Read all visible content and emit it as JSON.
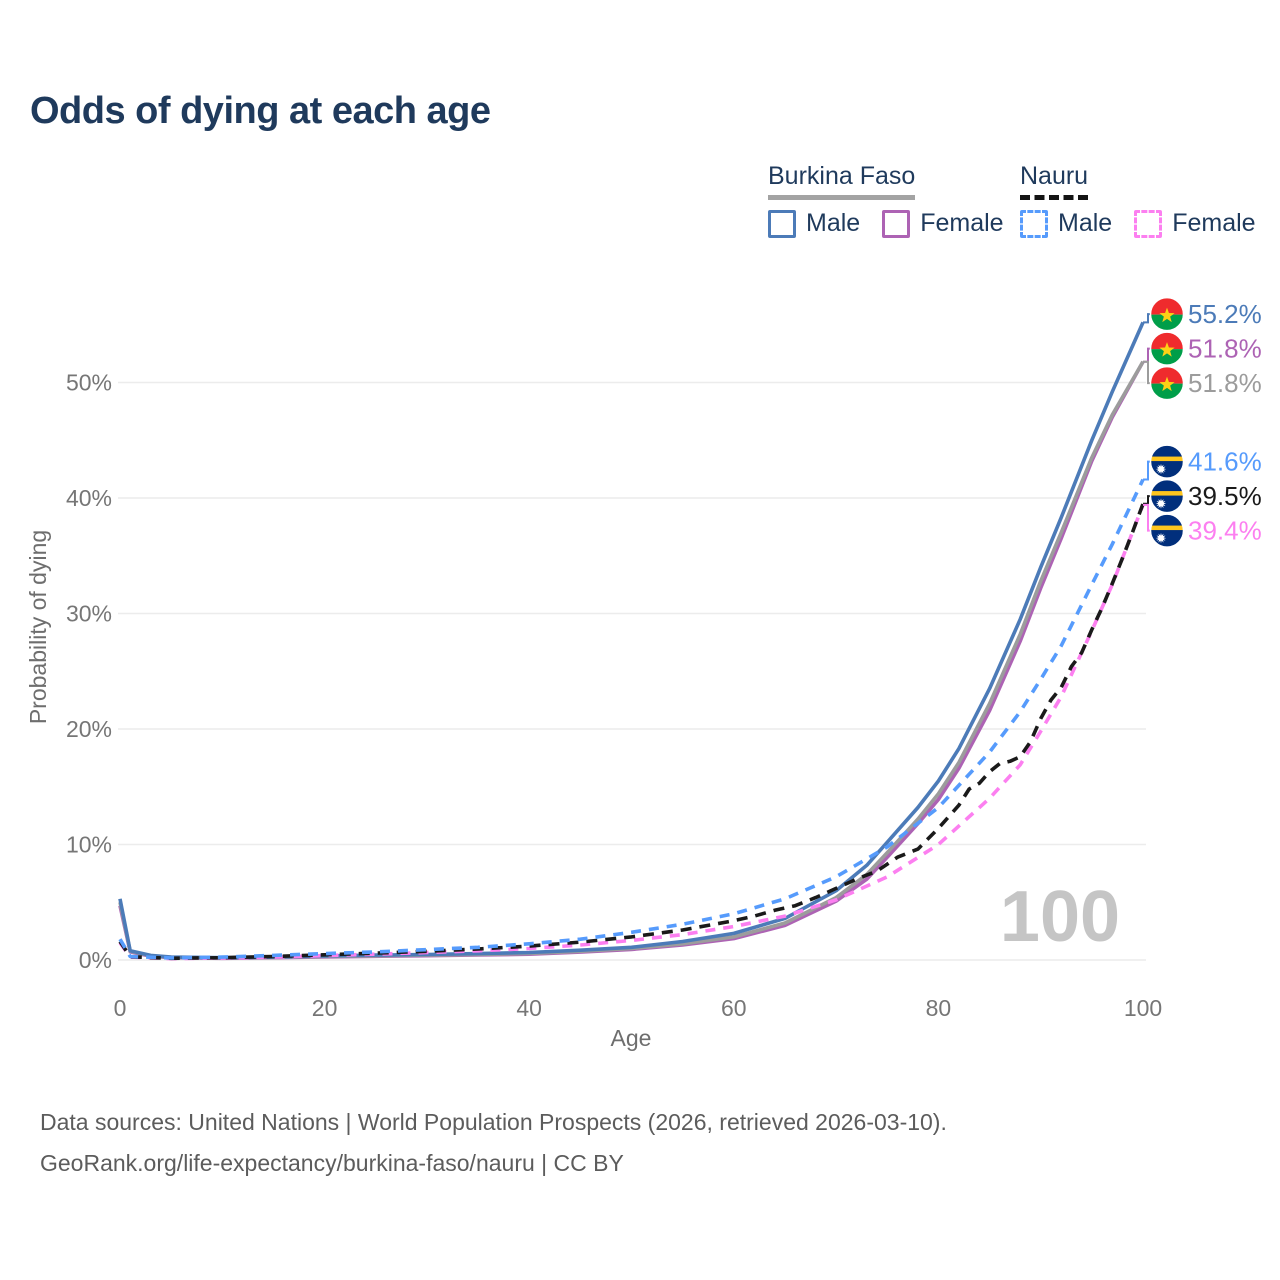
{
  "title": "Odds of dying at each age",
  "watermark_age": "100",
  "legend": {
    "groups": [
      {
        "country": "Burkina Faso",
        "line_style": "solid",
        "items": [
          {
            "label": "Male",
            "color": "#4c7bb8"
          },
          {
            "label": "Female",
            "color": "#ad63b4"
          }
        ]
      },
      {
        "country": "Nauru",
        "line_style": "dashed",
        "items": [
          {
            "label": "Male",
            "color": "#569bfc"
          },
          {
            "label": "Female",
            "color": "#fc7ff0"
          }
        ]
      }
    ]
  },
  "footer": {
    "line1": "Data sources: United Nations | World Population Prospects (2026, retrieved 2026-03-10).",
    "line2": "GeoRank.org/life-expectancy/burkina-faso/nauru | CC BY"
  },
  "flags": {
    "burkina-faso": {
      "red": "#EF2B2D",
      "green": "#009E49",
      "gold": "#FCD116"
    },
    "nauru": {
      "blue": "#012f7c",
      "gold": "#ffc61e",
      "white": "#ffffff"
    }
  },
  "chart_data": {
    "type": "line",
    "title": "Odds of dying at each age",
    "xlabel": "Age",
    "ylabel": "Probability of dying",
    "xlim": [
      0,
      100
    ],
    "ylim_percent": [
      0,
      58
    ],
    "x_ticks": [
      0,
      20,
      40,
      60,
      80,
      100
    ],
    "y_tick_values": [
      0,
      10,
      20,
      30,
      40,
      50
    ],
    "y_tick_labels": [
      "0%",
      "10%",
      "20%",
      "30%",
      "40%",
      "50%"
    ],
    "grid": true,
    "legend_position": "top-right",
    "age_watermark": "100",
    "series": [
      {
        "name": "Burkina Faso Female",
        "country": "burkina-faso",
        "color": "#ad63b4",
        "dash": null,
        "end_label": "51.8%",
        "end_value": 51.8,
        "values": [
          [
            0,
            4.7
          ],
          [
            1,
            0.7
          ],
          [
            3,
            0.33
          ],
          [
            5,
            0.2
          ],
          [
            10,
            0.15
          ],
          [
            15,
            0.2
          ],
          [
            20,
            0.27
          ],
          [
            25,
            0.32
          ],
          [
            30,
            0.37
          ],
          [
            35,
            0.43
          ],
          [
            40,
            0.5
          ],
          [
            45,
            0.68
          ],
          [
            50,
            0.92
          ],
          [
            55,
            1.3
          ],
          [
            60,
            1.85
          ],
          [
            65,
            3.0
          ],
          [
            70,
            5.1
          ],
          [
            73,
            7.0
          ],
          [
            75,
            8.9
          ],
          [
            78,
            11.8
          ],
          [
            80,
            13.9
          ],
          [
            82,
            16.6
          ],
          [
            85,
            21.6
          ],
          [
            88,
            27.6
          ],
          [
            90,
            32.2
          ],
          [
            92,
            36.5
          ],
          [
            95,
            43.2
          ],
          [
            97,
            47.0
          ],
          [
            100,
            51.8
          ]
        ]
      },
      {
        "name": "Burkina Faso Both sexes",
        "country": "burkina-faso",
        "color": "#9c9c9c",
        "dash": null,
        "end_label": "51.8%",
        "end_value": 51.8,
        "values": [
          [
            0,
            5.0
          ],
          [
            1,
            0.75
          ],
          [
            3,
            0.36
          ],
          [
            5,
            0.22
          ],
          [
            10,
            0.17
          ],
          [
            15,
            0.22
          ],
          [
            20,
            0.3
          ],
          [
            25,
            0.36
          ],
          [
            30,
            0.42
          ],
          [
            35,
            0.48
          ],
          [
            40,
            0.57
          ],
          [
            45,
            0.75
          ],
          [
            50,
            1.0
          ],
          [
            55,
            1.4
          ],
          [
            60,
            2.0
          ],
          [
            65,
            3.2
          ],
          [
            70,
            5.4
          ],
          [
            73,
            7.4
          ],
          [
            75,
            9.3
          ],
          [
            78,
            12.2
          ],
          [
            80,
            14.4
          ],
          [
            82,
            17.1
          ],
          [
            85,
            22.2
          ],
          [
            88,
            28.2
          ],
          [
            90,
            32.8
          ],
          [
            92,
            37.0
          ],
          [
            95,
            43.5
          ],
          [
            97,
            47.2
          ],
          [
            100,
            51.8
          ]
        ]
      },
      {
        "name": "Burkina Faso Male",
        "country": "burkina-faso",
        "color": "#4c7bb8",
        "dash": null,
        "end_label": "55.2%",
        "end_value": 55.2,
        "values": [
          [
            0,
            5.3
          ],
          [
            1,
            0.8
          ],
          [
            3,
            0.4
          ],
          [
            5,
            0.25
          ],
          [
            10,
            0.2
          ],
          [
            15,
            0.25
          ],
          [
            20,
            0.35
          ],
          [
            25,
            0.42
          ],
          [
            30,
            0.48
          ],
          [
            35,
            0.55
          ],
          [
            40,
            0.65
          ],
          [
            45,
            0.85
          ],
          [
            50,
            1.1
          ],
          [
            55,
            1.6
          ],
          [
            60,
            2.3
          ],
          [
            65,
            3.6
          ],
          [
            70,
            6.0
          ],
          [
            73,
            8.2
          ],
          [
            75,
            10.2
          ],
          [
            78,
            13.2
          ],
          [
            80,
            15.5
          ],
          [
            82,
            18.3
          ],
          [
            85,
            23.5
          ],
          [
            88,
            29.5
          ],
          [
            90,
            34.0
          ],
          [
            92,
            38.3
          ],
          [
            95,
            45.0
          ],
          [
            97,
            49.2
          ],
          [
            100,
            55.2
          ]
        ]
      },
      {
        "name": "Nauru Female",
        "country": "nauru",
        "color": "#fc7ff0",
        "dash": "10 8",
        "end_label": "39.4%",
        "end_value": 39.4,
        "values": [
          [
            0,
            1.5
          ],
          [
            1,
            0.25
          ],
          [
            5,
            0.12
          ],
          [
            10,
            0.17
          ],
          [
            15,
            0.25
          ],
          [
            20,
            0.38
          ],
          [
            25,
            0.5
          ],
          [
            30,
            0.65
          ],
          [
            35,
            0.8
          ],
          [
            40,
            1.0
          ],
          [
            45,
            1.3
          ],
          [
            50,
            1.7
          ],
          [
            55,
            2.2
          ],
          [
            60,
            2.9
          ],
          [
            65,
            3.8
          ],
          [
            70,
            5.2
          ],
          [
            75,
            7.2
          ],
          [
            80,
            10.0
          ],
          [
            85,
            14.0
          ],
          [
            88,
            16.9
          ],
          [
            90,
            19.8
          ],
          [
            92,
            22.8
          ],
          [
            95,
            28.5
          ],
          [
            97,
            32.5
          ],
          [
            100,
            39.4
          ]
        ]
      },
      {
        "name": "Nauru Both sexes",
        "country": "nauru",
        "color": "#1a1a1a",
        "dash": "11 8",
        "end_label": "39.5%",
        "end_value": 39.5,
        "values": [
          [
            0,
            1.6
          ],
          [
            1,
            0.28
          ],
          [
            5,
            0.15
          ],
          [
            10,
            0.2
          ],
          [
            15,
            0.3
          ],
          [
            20,
            0.45
          ],
          [
            25,
            0.6
          ],
          [
            30,
            0.75
          ],
          [
            35,
            0.95
          ],
          [
            40,
            1.2
          ],
          [
            45,
            1.55
          ],
          [
            50,
            2.0
          ],
          [
            55,
            2.6
          ],
          [
            60,
            3.4
          ],
          [
            62,
            3.8
          ],
          [
            64,
            4.3
          ],
          [
            66,
            4.7
          ],
          [
            68,
            5.4
          ],
          [
            70,
            6.2
          ],
          [
            72,
            7.0
          ],
          [
            74,
            7.7
          ],
          [
            76,
            8.9
          ],
          [
            78,
            9.6
          ],
          [
            80,
            11.4
          ],
          [
            82,
            13.4
          ],
          [
            83,
            14.8
          ],
          [
            84,
            15.3
          ],
          [
            85,
            16.3
          ],
          [
            86,
            17.0
          ],
          [
            87,
            17.2
          ],
          [
            88,
            17.6
          ],
          [
            89,
            18.9
          ],
          [
            90,
            20.9
          ],
          [
            91,
            22.5
          ],
          [
            92,
            23.6
          ],
          [
            93,
            25.4
          ],
          [
            94,
            26.6
          ],
          [
            95,
            28.6
          ],
          [
            96,
            30.5
          ],
          [
            97,
            32.6
          ],
          [
            98,
            34.8
          ],
          [
            99,
            37.1
          ],
          [
            100,
            39.5
          ]
        ]
      },
      {
        "name": "Nauru Male",
        "country": "nauru",
        "color": "#569bfc",
        "dash": "10 8",
        "end_label": "41.6%",
        "end_value": 41.6,
        "values": [
          [
            0,
            1.8
          ],
          [
            1,
            0.3
          ],
          [
            5,
            0.18
          ],
          [
            10,
            0.25
          ],
          [
            15,
            0.4
          ],
          [
            20,
            0.55
          ],
          [
            25,
            0.7
          ],
          [
            30,
            0.9
          ],
          [
            35,
            1.1
          ],
          [
            40,
            1.4
          ],
          [
            45,
            1.8
          ],
          [
            50,
            2.4
          ],
          [
            55,
            3.1
          ],
          [
            60,
            4.0
          ],
          [
            65,
            5.3
          ],
          [
            70,
            7.2
          ],
          [
            75,
            9.8
          ],
          [
            80,
            13.2
          ],
          [
            85,
            18.0
          ],
          [
            88,
            21.5
          ],
          [
            90,
            24.3
          ],
          [
            92,
            27.2
          ],
          [
            95,
            32.5
          ],
          [
            97,
            36.0
          ],
          [
            100,
            41.6
          ]
        ]
      }
    ]
  }
}
